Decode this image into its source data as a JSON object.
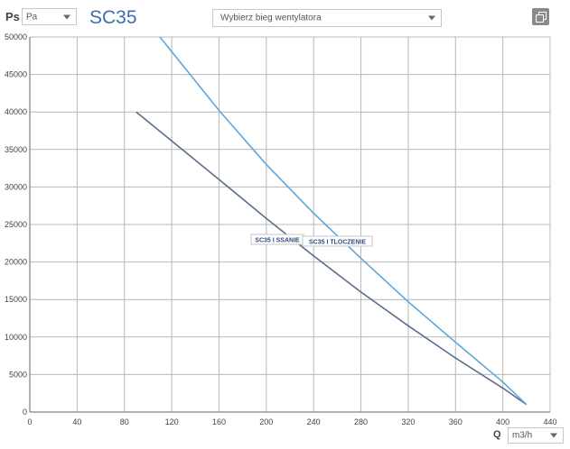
{
  "header": {
    "ps_label": "Ps",
    "unit_select": "Pa",
    "title": "SC35",
    "fan_speed_placeholder": "Wybierz bieg wentylatora",
    "restore_icon": "restore-window-icon"
  },
  "footer": {
    "q_label": "Q",
    "unit_select": "m3/h"
  },
  "chart_data": {
    "type": "line",
    "title": "SC35",
    "xlabel": "Q",
    "ylabel": "Ps",
    "xlim": [
      0,
      440
    ],
    "ylim": [
      0,
      50000
    ],
    "x_ticks": [
      0,
      40,
      80,
      120,
      160,
      200,
      240,
      280,
      320,
      360,
      400,
      440
    ],
    "y_ticks": [
      0,
      5000,
      10000,
      15000,
      20000,
      25000,
      30000,
      35000,
      40000,
      45000,
      50000
    ],
    "grid": true,
    "series": [
      {
        "name": "SC35 I SSANIE",
        "color": "#5a6e8c",
        "x": [
          90,
          160,
          200,
          240,
          280,
          320,
          360,
          400,
          420
        ],
        "y": [
          40000,
          31000,
          25800,
          20800,
          16000,
          11500,
          7200,
          3200,
          1000
        ]
      },
      {
        "name": "SC35 I TLOCZENIE",
        "color": "#5aa8d8",
        "x": [
          110,
          160,
          200,
          240,
          280,
          320,
          360,
          400,
          420
        ],
        "y": [
          50000,
          40200,
          33000,
          26500,
          20500,
          14700,
          9300,
          4000,
          1000
        ]
      }
    ]
  }
}
